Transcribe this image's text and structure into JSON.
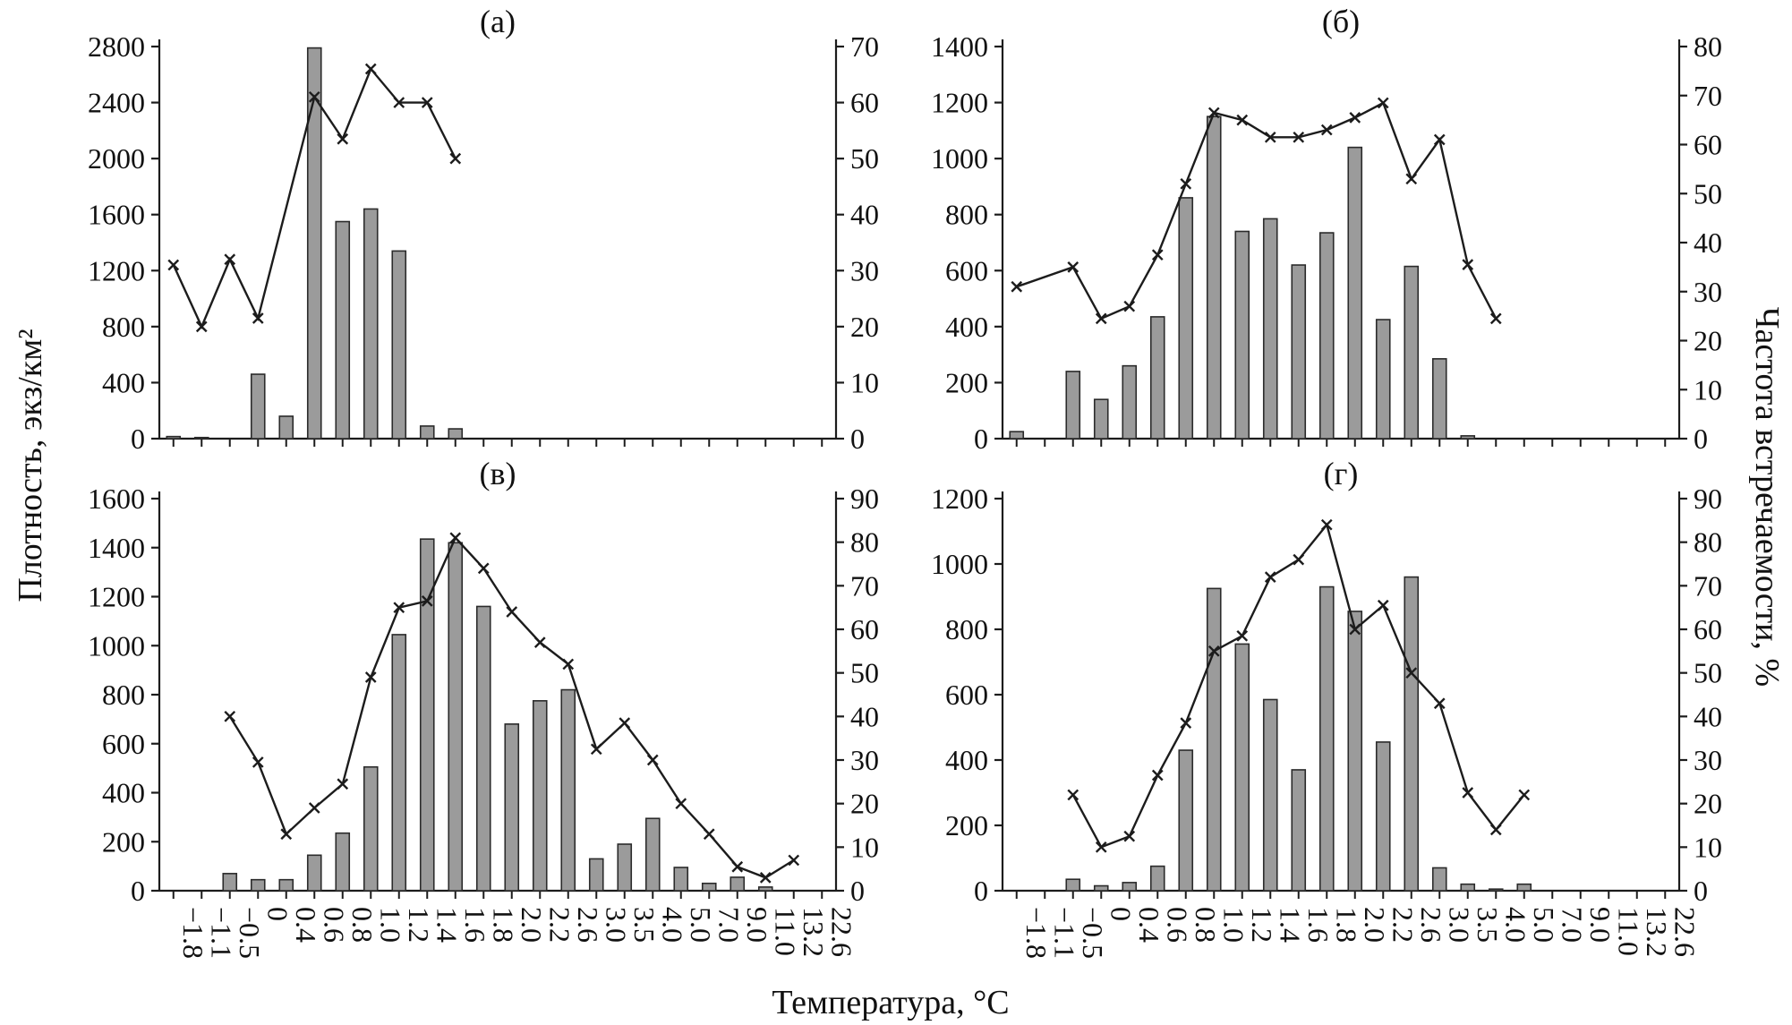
{
  "labels": {
    "y_left": "Плотность, экз/км²",
    "y_right": "Частота встречаемости, %",
    "x_axis": "Температура, °C"
  },
  "colors": {
    "bar_fill": "#9b9b9b",
    "bar_stroke": "#2b2b2b",
    "line": "#1c1c1c",
    "axis": "#1c1c1c"
  },
  "categories": [
    "−1.8",
    "−1.1",
    "−0.5",
    "0",
    "0.4",
    "0.6",
    "0.8",
    "1.0",
    "1.2",
    "1.4",
    "1.6",
    "1.8",
    "2.0",
    "2.2",
    "2.6",
    "3.0",
    "3.5",
    "4.0",
    "5.0",
    "7.0",
    "9.0",
    "11.0",
    "13.2",
    "22.6"
  ],
  "chart_data": [
    {
      "type": "bar+line",
      "title": "(а)",
      "show_x_labels": false,
      "left_axis": {
        "min": 0,
        "max": 2800,
        "step": 400
      },
      "right_axis": {
        "min": 0,
        "max": 70,
        "step": 10
      },
      "bar_values": [
        15,
        8,
        null,
        460,
        160,
        2790,
        1550,
        1640,
        1340,
        90,
        70,
        null,
        null,
        null,
        null,
        null,
        null,
        null,
        null,
        null,
        null,
        null,
        null,
        null
      ],
      "line_values": [
        31,
        20,
        32,
        21.5,
        null,
        61,
        53.5,
        66,
        60,
        60,
        50,
        null,
        null,
        null,
        null,
        null,
        null,
        null,
        null,
        null,
        null,
        null,
        null,
        null
      ]
    },
    {
      "type": "bar+line",
      "title": "(б)",
      "show_x_labels": false,
      "left_axis": {
        "min": 0,
        "max": 1400,
        "step": 200
      },
      "right_axis": {
        "min": 0,
        "max": 80,
        "step": 10
      },
      "bar_values": [
        25,
        null,
        240,
        140,
        260,
        435,
        860,
        1150,
        740,
        785,
        620,
        735,
        1040,
        425,
        615,
        285,
        10,
        null,
        null,
        null,
        null,
        null,
        null,
        null
      ],
      "line_values": [
        31,
        null,
        35,
        24.5,
        27,
        37.5,
        52,
        66.5,
        65,
        61.5,
        61.5,
        63,
        65.5,
        68.5,
        53,
        61,
        35.5,
        24.5,
        null,
        null,
        null,
        null,
        null,
        null
      ]
    },
    {
      "type": "bar+line",
      "title": "(в)",
      "show_x_labels": true,
      "left_axis": {
        "min": 0,
        "max": 1600,
        "step": 200
      },
      "right_axis": {
        "min": 0,
        "max": 90,
        "step": 10
      },
      "bar_values": [
        null,
        null,
        70,
        45,
        45,
        145,
        235,
        505,
        1045,
        1435,
        1420,
        1160,
        680,
        775,
        820,
        130,
        190,
        295,
        95,
        30,
        55,
        15,
        null,
        null
      ],
      "line_values": [
        null,
        null,
        40,
        29.5,
        13,
        19,
        24.5,
        49,
        65,
        66.5,
        81,
        74,
        64,
        57,
        52,
        32.5,
        38.5,
        30,
        20,
        13,
        5.5,
        3,
        7,
        null
      ]
    },
    {
      "type": "bar+line",
      "title": "(г)",
      "show_x_labels": true,
      "left_axis": {
        "min": 0,
        "max": 1200,
        "step": 200
      },
      "right_axis": {
        "min": 0,
        "max": 90,
        "step": 10
      },
      "bar_values": [
        null,
        null,
        35,
        15,
        25,
        75,
        430,
        925,
        755,
        585,
        370,
        930,
        855,
        455,
        960,
        70,
        20,
        5,
        20,
        null,
        null,
        null,
        null,
        null
      ],
      "line_values": [
        null,
        null,
        22,
        10,
        12.5,
        26.5,
        38.5,
        55,
        58.5,
        72,
        76,
        84,
        60,
        65.5,
        50,
        43,
        22.5,
        14,
        22,
        null,
        null,
        null,
        null,
        null
      ]
    }
  ]
}
